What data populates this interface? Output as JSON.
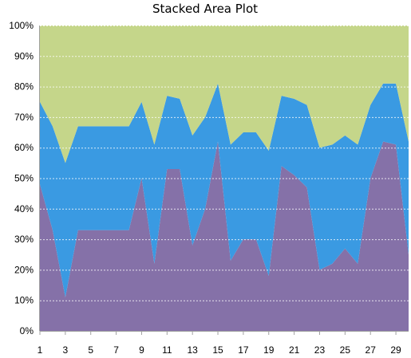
{
  "chart_data": {
    "type": "area",
    "stacking": "percent",
    "title": "Stacked Area Plot",
    "xlabel": "",
    "ylabel": "",
    "x": [
      1,
      2,
      3,
      4,
      5,
      6,
      7,
      8,
      9,
      10,
      11,
      12,
      13,
      14,
      15,
      16,
      17,
      18,
      19,
      20,
      21,
      22,
      23,
      24,
      25,
      26,
      27,
      28,
      29,
      30
    ],
    "x_tick_labels": [
      "1",
      "3",
      "5",
      "7",
      "9",
      "11",
      "13",
      "15",
      "17",
      "19",
      "21",
      "23",
      "25",
      "27",
      "29"
    ],
    "ylim": [
      0,
      100
    ],
    "y_tick_labels": [
      "0%",
      "10%",
      "20%",
      "30%",
      "40%",
      "50%",
      "60%",
      "70%",
      "80%",
      "90%",
      "100%"
    ],
    "grid": "horizontal",
    "legend": "none",
    "series": [
      {
        "color": "#8571a8",
        "values": [
          48,
          33,
          11,
          33,
          33,
          33,
          33,
          33,
          50,
          22,
          53,
          53,
          28,
          40,
          62,
          23,
          30,
          30,
          18,
          54,
          51,
          47,
          20,
          22,
          27,
          22,
          50,
          62,
          61,
          25
        ]
      },
      {
        "color": "#3a9ae2",
        "values": [
          27,
          34,
          44,
          34,
          34,
          34,
          34,
          34,
          25,
          39,
          24,
          23,
          36,
          30,
          19,
          38,
          35,
          35,
          41,
          23,
          25,
          27,
          40,
          39,
          37,
          39,
          24,
          19,
          20,
          37
        ]
      },
      {
        "color": "#c5d68a",
        "values": [
          25,
          33,
          45,
          33,
          33,
          33,
          33,
          33,
          25,
          39,
          23,
          24,
          36,
          30,
          19,
          39,
          35,
          35,
          41,
          23,
          24,
          26,
          40,
          39,
          36,
          39,
          26,
          19,
          19,
          38
        ]
      }
    ]
  }
}
